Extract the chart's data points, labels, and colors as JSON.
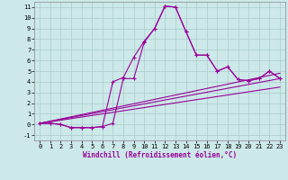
{
  "xlabel": "Windchill (Refroidissement éolien,°C)",
  "background_color": "#cce8e8",
  "grid_color": "#aacccc",
  "line_color": "#990099",
  "xlim": [
    -0.5,
    23.5
  ],
  "ylim": [
    -1.5,
    11.5
  ],
  "xticks": [
    0,
    1,
    2,
    3,
    4,
    5,
    6,
    7,
    8,
    9,
    10,
    11,
    12,
    13,
    14,
    15,
    16,
    17,
    18,
    19,
    20,
    21,
    22,
    23
  ],
  "yticks": [
    -1,
    0,
    1,
    2,
    3,
    4,
    5,
    6,
    7,
    8,
    9,
    10,
    11
  ],
  "line1_x": [
    0,
    1,
    2,
    3,
    4,
    5,
    6,
    7,
    8,
    9,
    10,
    11,
    12,
    13,
    14,
    15,
    16,
    17,
    18,
    19,
    20,
    21,
    22,
    23
  ],
  "line1_y": [
    0.1,
    0.1,
    0.0,
    -0.3,
    -0.3,
    -0.3,
    -0.2,
    0.1,
    4.3,
    4.3,
    7.7,
    9.0,
    11.1,
    11.0,
    8.7,
    6.5,
    6.5,
    5.0,
    5.4,
    4.2,
    4.1,
    4.3,
    5.0,
    4.3
  ],
  "line2_x": [
    0,
    1,
    2,
    3,
    4,
    5,
    6,
    7,
    8,
    9,
    10,
    11,
    12,
    13,
    14,
    15,
    16,
    17,
    18,
    19,
    20,
    21,
    22,
    23
  ],
  "line2_y": [
    0.1,
    0.1,
    0.0,
    -0.3,
    -0.3,
    -0.3,
    -0.2,
    4.0,
    4.4,
    6.3,
    7.8,
    9.0,
    11.1,
    11.0,
    8.7,
    6.5,
    6.5,
    5.0,
    5.4,
    4.2,
    4.1,
    4.3,
    5.0,
    4.3
  ],
  "line3_x": [
    0,
    23
  ],
  "line3_y": [
    0.1,
    4.3
  ],
  "line4_x": [
    0,
    23
  ],
  "line4_y": [
    0.1,
    3.5
  ],
  "line5_x": [
    0,
    23
  ],
  "line5_y": [
    0.1,
    4.8
  ],
  "tick_fontsize": 5.0,
  "xlabel_fontsize": 5.5
}
